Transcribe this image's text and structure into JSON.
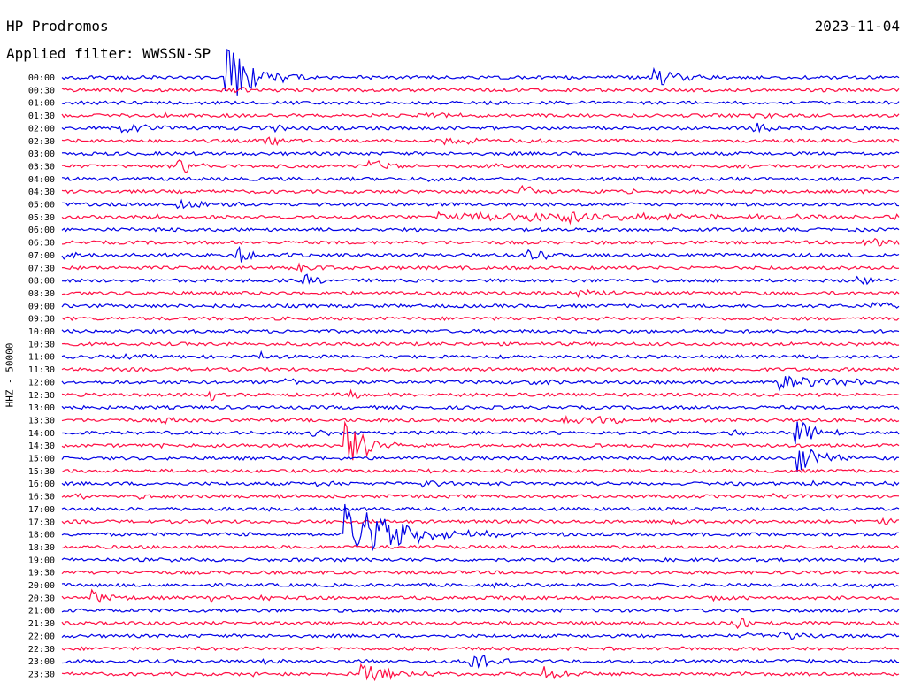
{
  "header": {
    "station": "HP Prodromos",
    "date": "2023-11-04",
    "filter_label": "Applied filter: WWSSN-SP"
  },
  "colors": {
    "trace_a": "#0000e6",
    "trace_b": "#ff0d43"
  },
  "chart_data": {
    "type": "line",
    "title": "HP Prodromos",
    "ylabel": "HHZ - 50000",
    "traces_alternate_colors": [
      "blue",
      "red"
    ],
    "row_labels": [
      "00:00",
      "00:30",
      "01:00",
      "01:30",
      "02:00",
      "02:30",
      "03:00",
      "03:30",
      "04:00",
      "04:30",
      "05:00",
      "05:30",
      "06:00",
      "06:30",
      "07:00",
      "07:30",
      "08:00",
      "08:30",
      "09:00",
      "09:30",
      "10:00",
      "10:30",
      "11:00",
      "11:30",
      "12:00",
      "12:30",
      "13:00",
      "13:30",
      "14:00",
      "14:30",
      "15:00",
      "15:30",
      "16:00",
      "16:30",
      "17:00",
      "17:30",
      "18:00",
      "18:30",
      "19:00",
      "19:30",
      "20:00",
      "20:30",
      "21:00",
      "21:30",
      "22:00",
      "22:30",
      "23:00",
      "23:30"
    ],
    "events": [
      {
        "row": 0,
        "t": 0.195,
        "amp": 9.0,
        "dur": 0.03
      },
      {
        "row": 0,
        "t": 0.71,
        "amp": 2.5,
        "dur": 0.03
      },
      {
        "row": 1,
        "t": 0.21,
        "amp": 0.5,
        "dur": 0.02
      },
      {
        "row": 3,
        "t": 0.125,
        "amp": 0.4,
        "dur": 0.01
      },
      {
        "row": 3,
        "t": 0.43,
        "amp": 0.5,
        "dur": 0.08
      },
      {
        "row": 3,
        "t": 0.83,
        "amp": 1.1,
        "dur": 0.015
      },
      {
        "row": 4,
        "t": 0.075,
        "amp": 1.6,
        "dur": 0.04
      },
      {
        "row": 4,
        "t": 0.25,
        "amp": 0.8,
        "dur": 0.02
      },
      {
        "row": 4,
        "t": 0.83,
        "amp": 1.2,
        "dur": 0.03
      },
      {
        "row": 5,
        "t": 0.245,
        "amp": 2.2,
        "dur": 0.02
      },
      {
        "row": 5,
        "t": 0.46,
        "amp": 1.0,
        "dur": 0.04
      },
      {
        "row": 5,
        "t": 0.54,
        "amp": 0.4,
        "dur": 0.02
      },
      {
        "row": 7,
        "t": 0.14,
        "amp": 2.5,
        "dur": 0.02
      },
      {
        "row": 7,
        "t": 0.37,
        "amp": 2.0,
        "dur": 0.03
      },
      {
        "row": 7,
        "t": 0.5,
        "amp": 0.5,
        "dur": 0.04
      },
      {
        "row": 8,
        "t": 0.44,
        "amp": 0.6,
        "dur": 0.02
      },
      {
        "row": 9,
        "t": 0.55,
        "amp": 2.0,
        "dur": 0.02
      },
      {
        "row": 9,
        "t": 0.68,
        "amp": 1.3,
        "dur": 0.01
      },
      {
        "row": 10,
        "t": 0.14,
        "amp": 1.6,
        "dur": 0.04
      },
      {
        "row": 10,
        "t": 0.3,
        "amp": 0.4,
        "dur": 0.02
      },
      {
        "row": 11,
        "t": 0.11,
        "amp": 0.6,
        "dur": 0.01
      },
      {
        "row": 11,
        "t": 0.45,
        "amp": 1.0,
        "dur": 0.5
      },
      {
        "row": 11,
        "t": 0.61,
        "amp": 2.8,
        "dur": 0.005
      },
      {
        "row": 12,
        "t": 0.13,
        "amp": 0.6,
        "dur": 0.01
      },
      {
        "row": 13,
        "t": 0.96,
        "amp": 1.4,
        "dur": 0.04
      },
      {
        "row": 14,
        "t": 0.0,
        "amp": 0.8,
        "dur": 0.05
      },
      {
        "row": 14,
        "t": 0.21,
        "amp": 2.4,
        "dur": 0.02
      },
      {
        "row": 14,
        "t": 0.56,
        "amp": 2.0,
        "dur": 0.02
      },
      {
        "row": 15,
        "t": 0.28,
        "amp": 2.0,
        "dur": 0.02
      },
      {
        "row": 15,
        "t": 0.67,
        "amp": 0.4,
        "dur": 0.01
      },
      {
        "row": 16,
        "t": 0.29,
        "amp": 1.6,
        "dur": 0.02
      },
      {
        "row": 16,
        "t": 0.95,
        "amp": 1.8,
        "dur": 0.02
      },
      {
        "row": 17,
        "t": 0.62,
        "amp": 1.5,
        "dur": 0.02
      },
      {
        "row": 18,
        "t": 0.18,
        "amp": 0.4,
        "dur": 0.01
      },
      {
        "row": 18,
        "t": 0.97,
        "amp": 1.3,
        "dur": 0.03
      },
      {
        "row": 21,
        "t": 0.2,
        "amp": 0.6,
        "dur": 0.01
      },
      {
        "row": 21,
        "t": 0.9,
        "amp": 0.5,
        "dur": 0.04
      },
      {
        "row": 22,
        "t": 0.07,
        "amp": 0.5,
        "dur": 0.03
      },
      {
        "row": 22,
        "t": 0.24,
        "amp": 2.0,
        "dur": 0.002
      },
      {
        "row": 24,
        "t": 0.27,
        "amp": 1.3,
        "dur": 0.02
      },
      {
        "row": 24,
        "t": 0.56,
        "amp": 0.5,
        "dur": 0.03
      },
      {
        "row": 24,
        "t": 0.86,
        "amp": 2.2,
        "dur": 0.06
      },
      {
        "row": 25,
        "t": 0.18,
        "amp": 1.6,
        "dur": 0.002
      },
      {
        "row": 25,
        "t": 0.34,
        "amp": 1.4,
        "dur": 0.02
      },
      {
        "row": 25,
        "t": 0.48,
        "amp": 0.4,
        "dur": 0.04
      },
      {
        "row": 27,
        "t": 0.12,
        "amp": 1.1,
        "dur": 0.02
      },
      {
        "row": 27,
        "t": 0.6,
        "amp": 1.2,
        "dur": 0.08
      },
      {
        "row": 28,
        "t": 0.3,
        "amp": 1.6,
        "dur": 0.02
      },
      {
        "row": 28,
        "t": 0.8,
        "amp": 0.8,
        "dur": 0.01
      },
      {
        "row": 28,
        "t": 0.88,
        "amp": 4.0,
        "dur": 0.02
      },
      {
        "row": 29,
        "t": 0.12,
        "amp": 0.6,
        "dur": 0.03
      },
      {
        "row": 29,
        "t": 0.22,
        "amp": 0.5,
        "dur": 0.02
      },
      {
        "row": 29,
        "t": 0.34,
        "amp": 9.0,
        "dur": 0.02
      },
      {
        "row": 30,
        "t": 0.88,
        "amp": 4.0,
        "dur": 0.03
      },
      {
        "row": 31,
        "t": 0.44,
        "amp": 0.5,
        "dur": 0.01
      },
      {
        "row": 32,
        "t": 0.3,
        "amp": 0.8,
        "dur": 0.02
      },
      {
        "row": 32,
        "t": 0.43,
        "amp": 1.0,
        "dur": 0.02
      },
      {
        "row": 32,
        "t": 0.9,
        "amp": 0.6,
        "dur": 0.02
      },
      {
        "row": 32,
        "t": 0.98,
        "amp": 0.5,
        "dur": 0.02
      },
      {
        "row": 33,
        "t": 0.02,
        "amp": 1.0,
        "dur": 0.02
      },
      {
        "row": 33,
        "t": 0.08,
        "amp": 0.8,
        "dur": 0.02
      },
      {
        "row": 33,
        "t": 0.85,
        "amp": 0.8,
        "dur": 0.02
      },
      {
        "row": 34,
        "t": 0.22,
        "amp": 0.5,
        "dur": 0.02
      },
      {
        "row": 35,
        "t": 0.73,
        "amp": 1.0,
        "dur": 0.015
      },
      {
        "row": 35,
        "t": 0.98,
        "amp": 0.9,
        "dur": 0.02
      },
      {
        "row": 36,
        "t": 0.22,
        "amp": 0.5,
        "dur": 0.02
      },
      {
        "row": 36,
        "t": 0.34,
        "amp": 9.0,
        "dur": 0.06
      },
      {
        "row": 37,
        "t": 0.4,
        "amp": 0.4,
        "dur": 0.01
      },
      {
        "row": 38,
        "t": 0.13,
        "amp": 0.5,
        "dur": 0.02
      },
      {
        "row": 40,
        "t": 0.52,
        "amp": 0.5,
        "dur": 0.02
      },
      {
        "row": 40,
        "t": 0.7,
        "amp": 0.5,
        "dur": 0.02
      },
      {
        "row": 40,
        "t": 0.97,
        "amp": 0.5,
        "dur": 0.01
      },
      {
        "row": 41,
        "t": 0.038,
        "amp": 2.0,
        "dur": 0.02
      },
      {
        "row": 41,
        "t": 0.18,
        "amp": 1.1,
        "dur": 0.01
      },
      {
        "row": 41,
        "t": 0.24,
        "amp": 0.7,
        "dur": 0.01
      },
      {
        "row": 41,
        "t": 0.78,
        "amp": 0.9,
        "dur": 0.01
      },
      {
        "row": 42,
        "t": 0.19,
        "amp": 1.1,
        "dur": 0.01
      },
      {
        "row": 43,
        "t": 0.55,
        "amp": 0.5,
        "dur": 0.03
      },
      {
        "row": 43,
        "t": 0.81,
        "amp": 1.8,
        "dur": 0.02
      },
      {
        "row": 44,
        "t": 0.82,
        "amp": 0.5,
        "dur": 0.04
      },
      {
        "row": 44,
        "t": 0.86,
        "amp": 1.2,
        "dur": 0.02
      },
      {
        "row": 45,
        "t": 0.42,
        "amp": 0.5,
        "dur": 0.02
      },
      {
        "row": 46,
        "t": 0.24,
        "amp": 1.1,
        "dur": 0.02
      },
      {
        "row": 46,
        "t": 0.49,
        "amp": 3.0,
        "dur": 0.02
      },
      {
        "row": 46,
        "t": 0.68,
        "amp": 0.4,
        "dur": 0.04
      },
      {
        "row": 47,
        "t": 0.22,
        "amp": 0.7,
        "dur": 0.02
      },
      {
        "row": 47,
        "t": 0.36,
        "amp": 2.5,
        "dur": 0.04
      },
      {
        "row": 47,
        "t": 0.58,
        "amp": 2.0,
        "dur": 0.02
      },
      {
        "row": 47,
        "t": 0.82,
        "amp": 0.4,
        "dur": 0.01
      }
    ]
  }
}
